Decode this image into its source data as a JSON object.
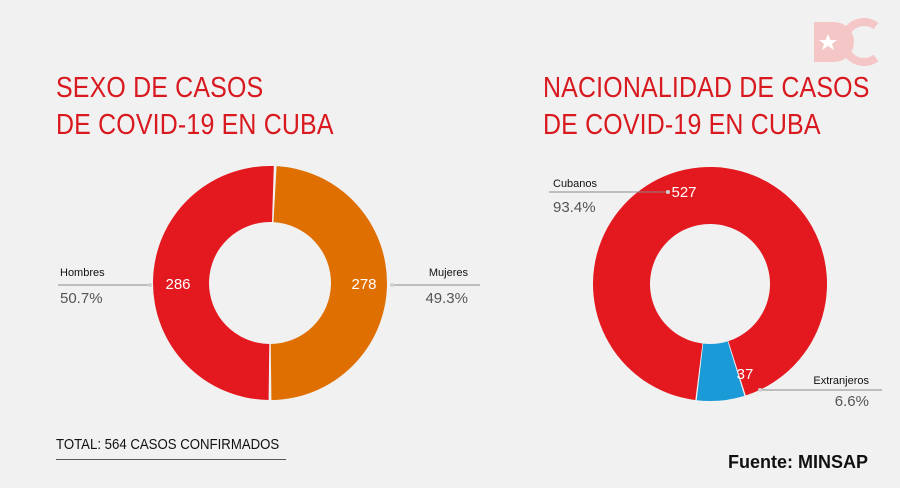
{
  "logo_text": "DC",
  "charts": [
    {
      "id": "sexo",
      "title_lines": [
        "SEXO DE CASOS",
        "DE COVID-19 EN CUBA"
      ],
      "total_label": "TOTAL: 564 CASOS CONFIRMADOS"
    },
    {
      "id": "nacionalidad",
      "title_lines": [
        "NACIONALIDAD DE CASOS",
        "DE COVID-19 EN CUBA"
      ]
    }
  ],
  "source_label": "Fuente: MINSAP",
  "chart_data": [
    {
      "type": "pie",
      "variant": "donut",
      "title": "SEXO DE CASOS DE COVID-19 EN CUBA",
      "slices": [
        {
          "label": "Hombres",
          "value": 286,
          "percent": "50.7%",
          "color": "#e3191f"
        },
        {
          "label": "Mujeres",
          "value": 278,
          "percent": "49.3%",
          "color": "#df6f00"
        }
      ],
      "total": 564
    },
    {
      "type": "pie",
      "variant": "donut",
      "title": "NACIONALIDAD DE CASOS DE COVID-19 EN CUBA",
      "slices": [
        {
          "label": "Cubanos",
          "value": 527,
          "percent": "93.4%",
          "color": "#e3191f"
        },
        {
          "label": "Extranjeros",
          "value": 37,
          "percent": "6.6%",
          "color": "#1a9ad6"
        }
      ],
      "total": 564
    }
  ],
  "colors": {
    "title": "#d8191f",
    "background": "#f1f1f1",
    "label_text": "#111111",
    "percent_text": "#555555"
  }
}
